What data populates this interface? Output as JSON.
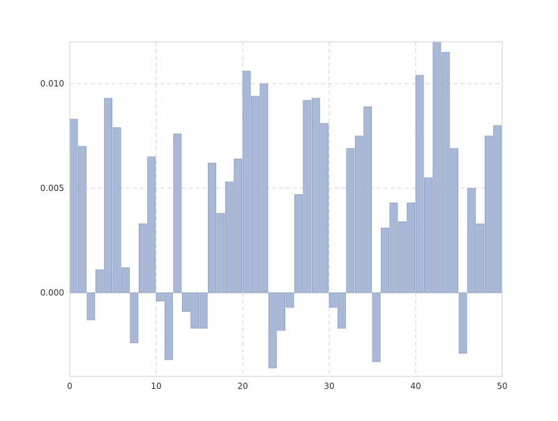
{
  "chart_data": {
    "type": "bar",
    "title": "",
    "xlabel": "",
    "ylabel": "",
    "xlim": [
      0,
      50
    ],
    "ylim": [
      -0.004,
      0.012
    ],
    "xticks": [
      0,
      10,
      20,
      30,
      40,
      50
    ],
    "xtick_labels": [
      "0",
      "10",
      "20",
      "30",
      "40",
      "50"
    ],
    "yticks": [
      0.0,
      0.005,
      0.01
    ],
    "ytick_labels": [
      "0.000",
      "0.005",
      "0.010"
    ],
    "grid": true,
    "legend": "none",
    "bar_color": "#a8b8d8",
    "bar_edge_color": "#7f8ea8",
    "x": [
      0,
      1,
      2,
      3,
      4,
      5,
      6,
      7,
      8,
      9,
      10,
      11,
      12,
      13,
      14,
      15,
      16,
      17,
      18,
      19,
      20,
      21,
      22,
      23,
      24,
      25,
      26,
      27,
      28,
      29,
      30,
      31,
      32,
      33,
      34,
      35,
      36,
      37,
      38,
      39,
      40,
      41,
      42,
      43,
      44,
      45,
      46,
      47,
      48,
      49
    ],
    "values": [
      0.0083,
      0.007,
      -0.0013,
      0.0011,
      0.0093,
      0.0079,
      0.0012,
      -0.0024,
      0.0033,
      0.0065,
      -0.0004,
      -0.0032,
      0.0076,
      -0.0009,
      -0.0017,
      -0.0017,
      0.0062,
      0.0038,
      0.0053,
      0.0064,
      0.0106,
      0.0094,
      0.01,
      -0.0036,
      -0.0018,
      -0.0007,
      0.0047,
      0.0092,
      0.0093,
      0.0081,
      -0.0007,
      -0.0017,
      0.0069,
      0.0075,
      0.0089,
      -0.0033,
      0.0031,
      0.0043,
      0.0034,
      0.0043,
      0.0104,
      0.0055,
      0.012,
      0.0115,
      0.0069,
      -0.0029,
      0.005,
      0.0033,
      0.0075,
      0.008
    ]
  }
}
